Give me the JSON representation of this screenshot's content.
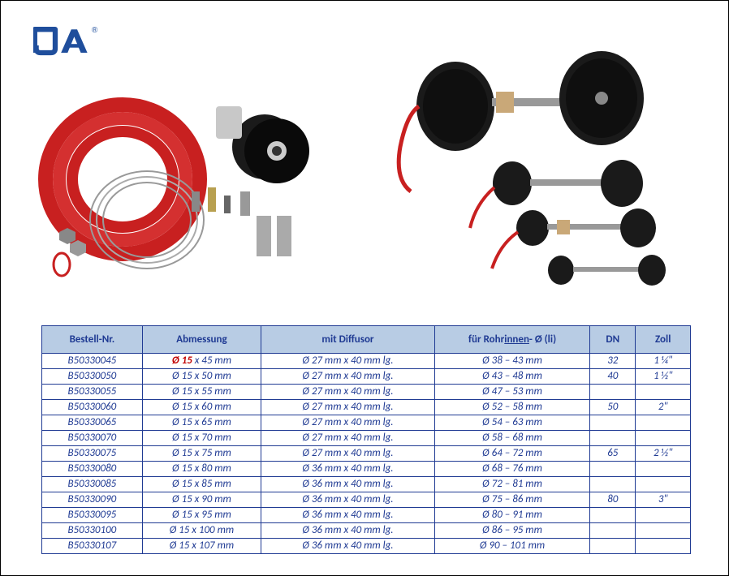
{
  "logo": {
    "brand": "JA",
    "color": "#1f4e9c",
    "reg_mark": "®"
  },
  "table": {
    "header_bg": "#b8cce4",
    "border_color": "#1f3a93",
    "text_color": "#1f3a93",
    "highlight_color": "#c00000",
    "columns": {
      "bestell": "Bestell-Nr.",
      "abmessung": "Abmessung",
      "diffusor": "mit Diffusor",
      "rohr_pre": "für Rohr",
      "rohr_u": "innen",
      "rohr_post": "- Ø (li)",
      "dn": "DN",
      "zoll": "Zoll"
    },
    "rows": [
      {
        "bestell": "B50330045",
        "abm_pre": "Ø 15",
        "abm_x": " x  ",
        "abm_val": "45 mm",
        "abm_red": true,
        "diff": "Ø  27 mm x   40 mm lg.",
        "rohr": "Ø   38 –   43 mm",
        "dn": "32",
        "zoll": "1 ¼\""
      },
      {
        "bestell": "B50330050",
        "abm_pre": "Ø 15 x",
        "abm_val": "  50 mm",
        "diff": "Ø  27 mm x   40 mm lg.",
        "rohr": "Ø   43 –   48 mm",
        "dn": "40",
        "zoll": "1 ½\""
      },
      {
        "bestell": "B50330055",
        "abm_pre": "Ø 15 x",
        "abm_val": "  55 mm",
        "diff": "Ø  27 mm x   40 mm lg.",
        "rohr": "Ø   47 –   53 mm",
        "dn": "",
        "zoll": ""
      },
      {
        "bestell": "B50330060",
        "abm_pre": "Ø 15 x",
        "abm_val": "  60 mm",
        "diff": "Ø  27 mm x   40 mm lg.",
        "rohr": "Ø   52 –   58 mm",
        "dn": "50",
        "zoll": "2\""
      },
      {
        "bestell": "B50330065",
        "abm_pre": "Ø 15 x",
        "abm_val": "  65 mm",
        "diff": "Ø  27 mm x   40 mm lg.",
        "rohr": "Ø   54 –   63 mm",
        "dn": "",
        "zoll": ""
      },
      {
        "bestell": "B50330070",
        "abm_pre": "Ø 15 x",
        "abm_val": "  70 mm",
        "diff": "Ø  27 mm x   40 mm lg.",
        "rohr": "Ø   58 –   68 mm",
        "dn": "",
        "zoll": ""
      },
      {
        "bestell": "B50330075",
        "abm_pre": "Ø 15 x",
        "abm_val": "  75 mm",
        "diff": "Ø  27 mm x   40 mm lg.",
        "rohr": "Ø   64 –   72 mm",
        "dn": "65",
        "zoll": "2 ½\""
      },
      {
        "bestell": "B50330080",
        "abm_pre": "Ø 15 x",
        "abm_val": "  80 mm",
        "diff": "Ø  36 mm x   40 mm lg.",
        "rohr": "Ø   68 –   76 mm",
        "dn": "",
        "zoll": ""
      },
      {
        "bestell": "B50330085",
        "abm_pre": "Ø 15 x",
        "abm_val": "  85 mm",
        "diff": "Ø  36 mm x   40 mm lg.",
        "rohr": "Ø   72 –   81 mm",
        "dn": "",
        "zoll": ""
      },
      {
        "bestell": "B50330090",
        "abm_pre": "Ø 15 x",
        "abm_val": "  90 mm",
        "diff": "Ø  36 mm x   40 mm lg.",
        "rohr": "Ø   75 –   86 mm",
        "dn": "80",
        "zoll": "3\""
      },
      {
        "bestell": "B50330095",
        "abm_pre": "Ø 15 x",
        "abm_val": "  95 mm",
        "diff": "Ø  36 mm x   40 mm lg.",
        "rohr": "Ø   80 –   91 mm",
        "dn": "",
        "zoll": ""
      },
      {
        "bestell": "B50330100",
        "abm_pre": "Ø 15 x",
        "abm_val": " 100 mm",
        "diff": "Ø  36 mm x   40 mm lg.",
        "rohr": "Ø   86 –   95 mm",
        "dn": "",
        "zoll": ""
      },
      {
        "bestell": "B50330107",
        "abm_pre": "Ø 15 x",
        "abm_val": " 107 mm",
        "diff": "Ø  36 mm x   40 mm lg.",
        "rohr": "Ø   90 – 101 mm",
        "dn": "",
        "zoll": ""
      }
    ]
  },
  "images": {
    "left_desc": "hose-kit-parts",
    "right_desc": "diffusor-assemblies"
  }
}
